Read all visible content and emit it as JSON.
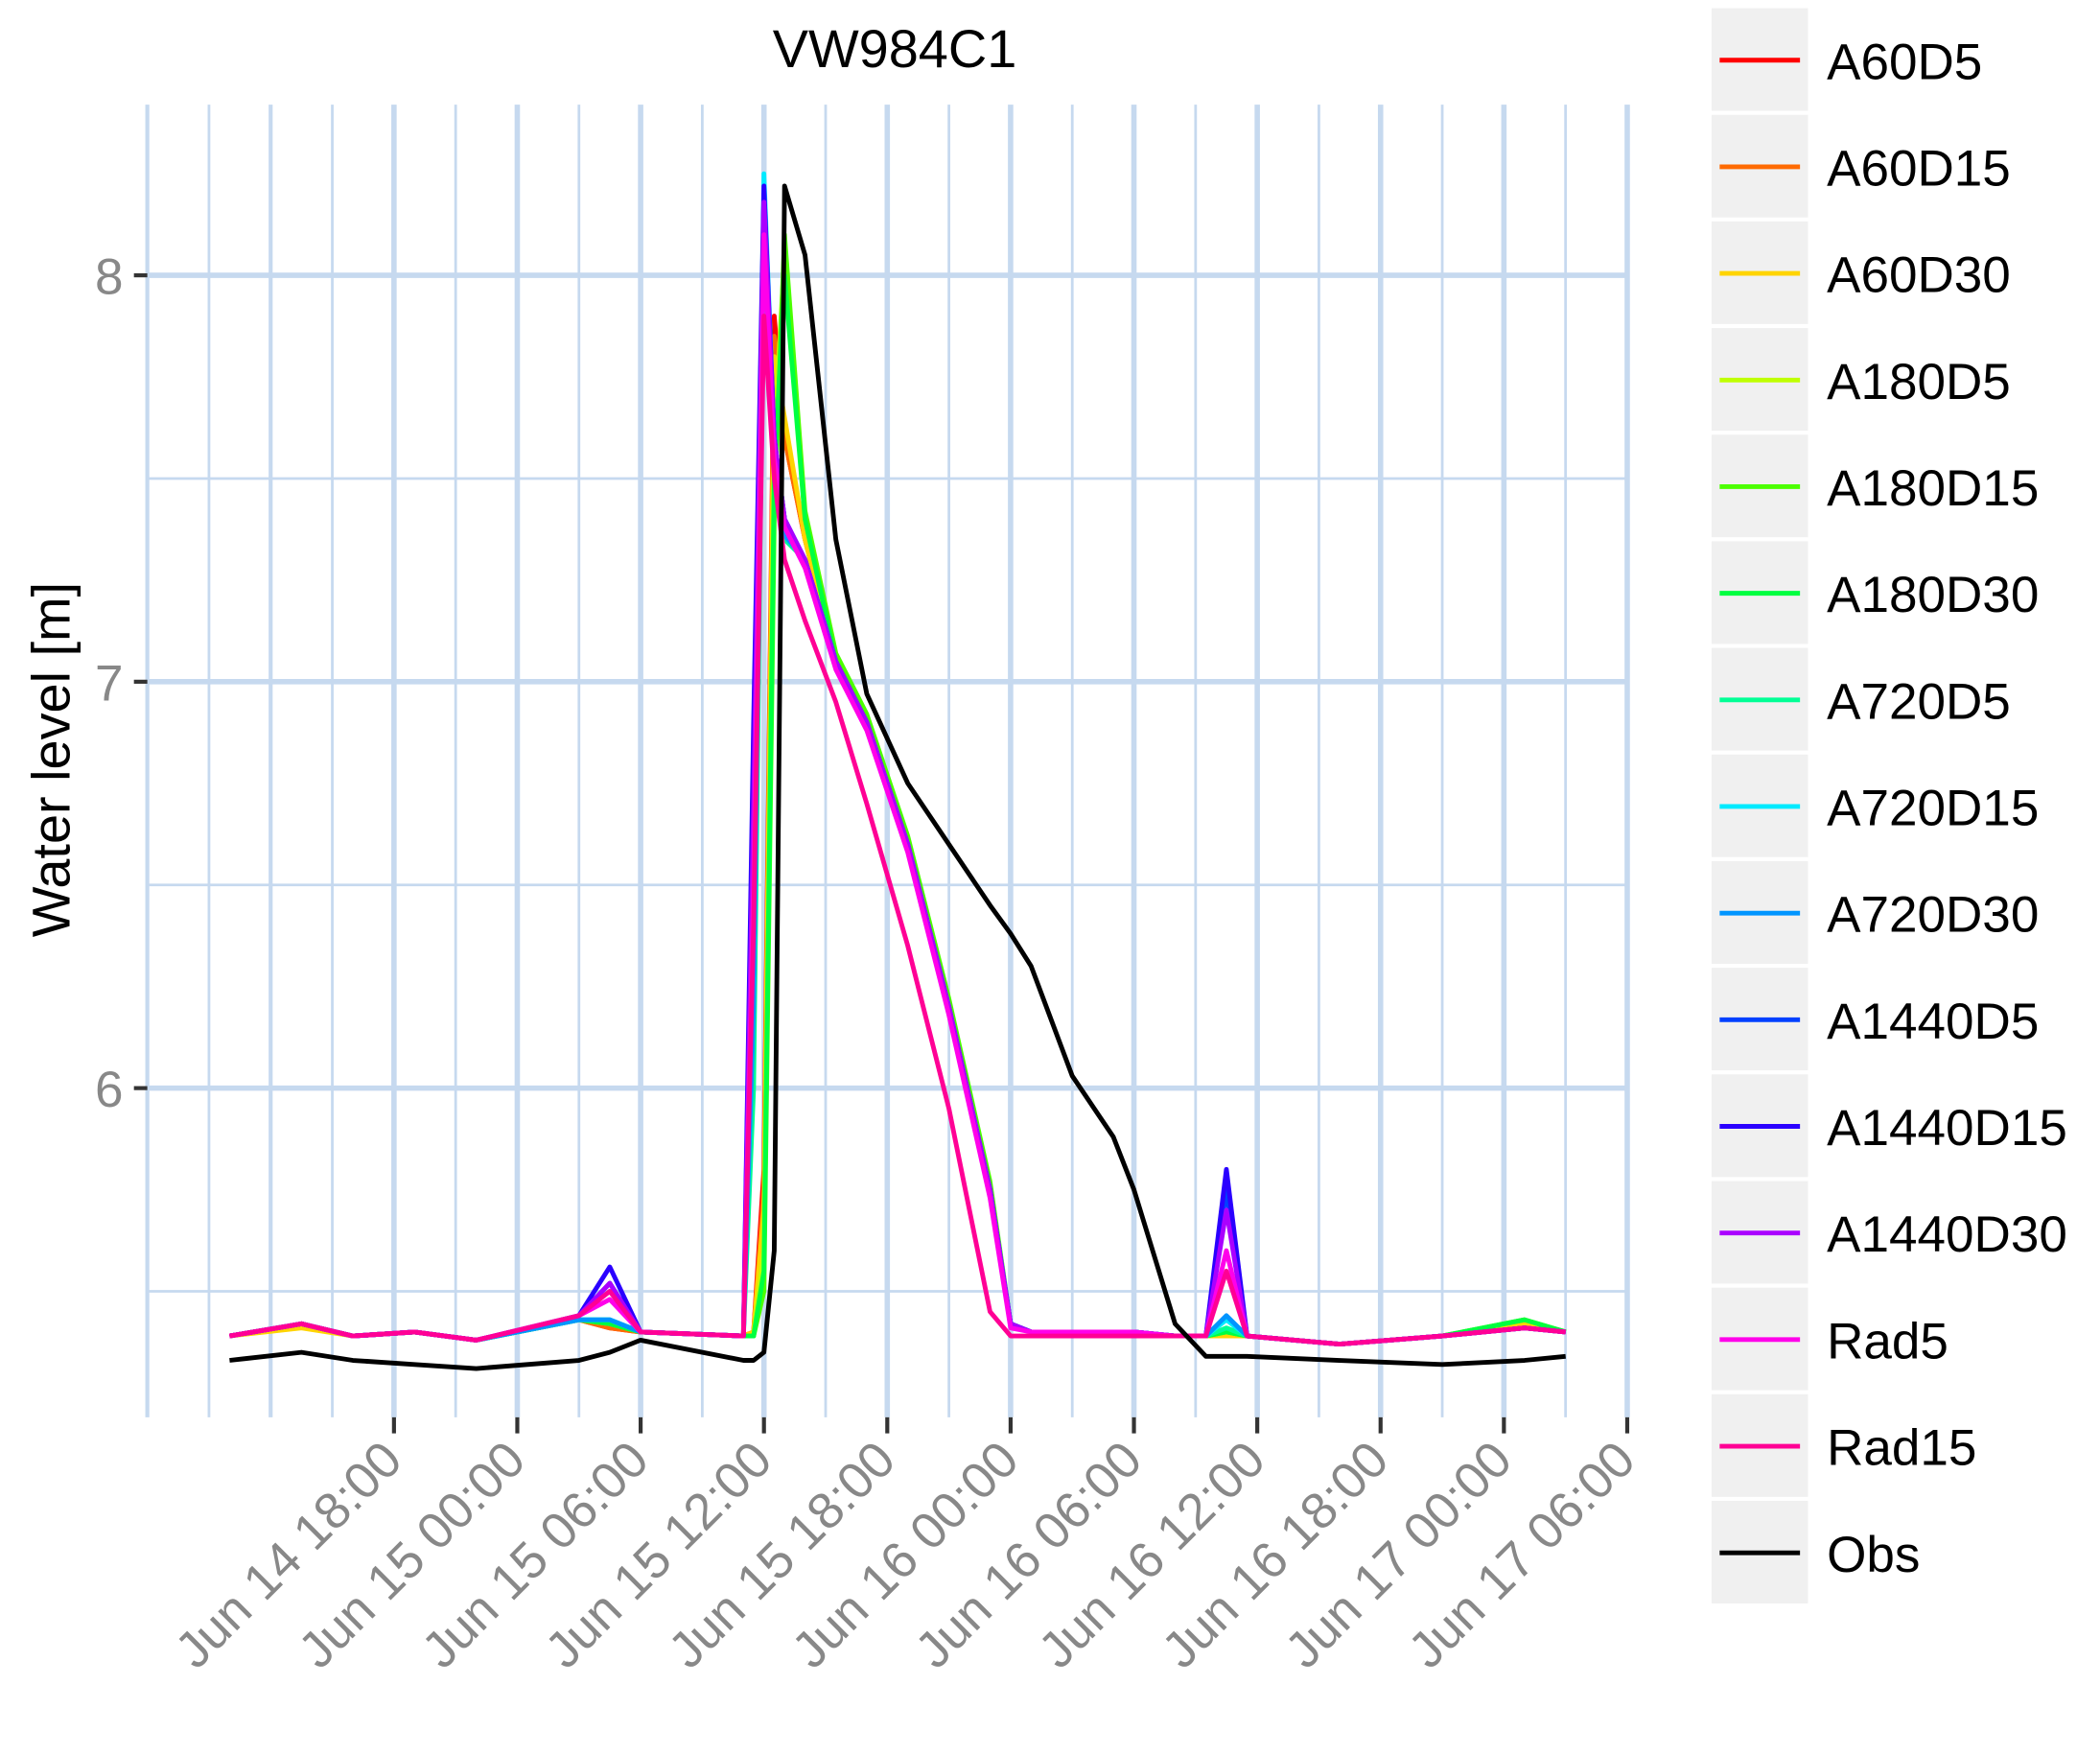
{
  "chart_data": {
    "type": "line",
    "title": "VW984C1",
    "y_label": "Water level [m]",
    "grid": true,
    "legend_position": "right",
    "x": [
      "Jun 14 10:00",
      "Jun 14 13:30",
      "Jun 14 16:00",
      "Jun 14 19:00",
      "Jun 14 22:00",
      "Jun 15 03:00",
      "Jun 15 04:30",
      "Jun 15 06:00",
      "Jun 15 11:00",
      "Jun 15 11:30",
      "Jun 15 12:00",
      "Jun 15 12:30",
      "Jun 15 13:00",
      "Jun 15 14:00",
      "Jun 15 15:30",
      "Jun 15 17:00",
      "Jun 15 19:00",
      "Jun 15 21:00",
      "Jun 15 23:00",
      "Jun 16 00:00",
      "Jun 16 01:00",
      "Jun 16 03:00",
      "Jun 16 05:00",
      "Jun 16 06:00",
      "Jun 16 08:00",
      "Jun 16 09:30",
      "Jun 16 10:30",
      "Jun 16 11:30",
      "Jun 16 16:00",
      "Jun 16 21:00",
      "Jun 17 01:00",
      "Jun 17 03:00"
    ],
    "xlim": [
      "Jun 14 06:00",
      "Jun 17 06:00"
    ],
    "xticks": [
      "Jun 14 18:00",
      "Jun 15 00:00",
      "Jun 15 06:00",
      "Jun 15 12:00",
      "Jun 15 18:00",
      "Jun 16 00:00",
      "Jun 16 06:00",
      "Jun 16 12:00",
      "Jun 16 18:00",
      "Jun 17 00:00",
      "Jun 17 06:00"
    ],
    "ylim": [
      5.19,
      8.42
    ],
    "yticks": [
      6,
      7,
      8
    ],
    "series": [
      {
        "name": "A60D5",
        "color": "#ff0000",
        "values": [
          5.39,
          5.42,
          5.39,
          5.4,
          5.38,
          5.43,
          5.41,
          5.4,
          5.39,
          5.4,
          5.8,
          7.9,
          7.6,
          7.35,
          7.05,
          6.9,
          6.6,
          6.2,
          5.75,
          5.42,
          5.4,
          5.4,
          5.4,
          5.4,
          5.39,
          5.39,
          5.39,
          5.39,
          5.37,
          5.39,
          5.42,
          5.4
        ]
      },
      {
        "name": "A60D15",
        "color": "#ff6a00",
        "values": [
          5.39,
          5.42,
          5.39,
          5.4,
          5.38,
          5.43,
          5.41,
          5.4,
          5.39,
          5.4,
          5.75,
          7.85,
          7.6,
          7.35,
          7.05,
          6.9,
          6.6,
          6.2,
          5.75,
          5.42,
          5.4,
          5.4,
          5.4,
          5.4,
          5.39,
          5.39,
          5.39,
          5.39,
          5.37,
          5.39,
          5.42,
          5.4
        ]
      },
      {
        "name": "A60D30",
        "color": "#ffd400",
        "values": [
          5.39,
          5.41,
          5.39,
          5.4,
          5.38,
          5.43,
          5.42,
          5.4,
          5.39,
          5.4,
          5.7,
          7.8,
          7.65,
          7.35,
          7.05,
          6.9,
          6.6,
          6.2,
          5.75,
          5.42,
          5.4,
          5.4,
          5.4,
          5.4,
          5.39,
          5.39,
          5.39,
          5.39,
          5.37,
          5.39,
          5.42,
          5.4
        ]
      },
      {
        "name": "A180D5",
        "color": "#bfff00",
        "values": [
          5.39,
          5.42,
          5.39,
          5.4,
          5.38,
          5.43,
          5.42,
          5.4,
          5.39,
          5.39,
          5.6,
          7.6,
          8.05,
          7.4,
          7.05,
          6.9,
          6.6,
          6.2,
          5.75,
          5.42,
          5.4,
          5.4,
          5.4,
          5.4,
          5.39,
          5.39,
          5.4,
          5.39,
          5.37,
          5.39,
          5.43,
          5.4
        ]
      },
      {
        "name": "A180D15",
        "color": "#4cff00",
        "values": [
          5.39,
          5.42,
          5.39,
          5.4,
          5.38,
          5.43,
          5.42,
          5.4,
          5.39,
          5.39,
          5.5,
          7.4,
          8.1,
          7.42,
          7.07,
          6.92,
          6.62,
          6.22,
          5.77,
          5.42,
          5.4,
          5.4,
          5.4,
          5.4,
          5.39,
          5.39,
          5.4,
          5.39,
          5.37,
          5.39,
          5.43,
          5.4
        ]
      },
      {
        "name": "A180D30",
        "color": "#00ff40",
        "values": [
          5.39,
          5.42,
          5.39,
          5.4,
          5.38,
          5.43,
          5.42,
          5.4,
          5.39,
          5.39,
          5.55,
          7.5,
          8.0,
          7.4,
          7.05,
          6.9,
          6.6,
          6.2,
          5.75,
          5.42,
          5.4,
          5.4,
          5.4,
          5.4,
          5.39,
          5.39,
          5.4,
          5.39,
          5.37,
          5.39,
          5.43,
          5.4
        ]
      },
      {
        "name": "A720D5",
        "color": "#00ff95",
        "values": [
          5.39,
          5.42,
          5.39,
          5.4,
          5.38,
          5.43,
          5.43,
          5.4,
          5.39,
          6.0,
          8.1,
          7.55,
          7.35,
          7.3,
          7.05,
          6.9,
          6.6,
          6.2,
          5.75,
          5.42,
          5.4,
          5.4,
          5.4,
          5.4,
          5.39,
          5.39,
          5.41,
          5.39,
          5.37,
          5.39,
          5.41,
          5.4
        ]
      },
      {
        "name": "A720D15",
        "color": "#00eaff",
        "values": [
          5.39,
          5.42,
          5.39,
          5.4,
          5.38,
          5.43,
          5.43,
          5.4,
          5.39,
          6.3,
          8.25,
          7.6,
          7.38,
          7.3,
          7.05,
          6.9,
          6.6,
          6.2,
          5.75,
          5.42,
          5.4,
          5.4,
          5.4,
          5.4,
          5.39,
          5.39,
          5.43,
          5.39,
          5.37,
          5.39,
          5.41,
          5.4
        ]
      },
      {
        "name": "A720D30",
        "color": "#0095ff",
        "values": [
          5.39,
          5.42,
          5.39,
          5.4,
          5.38,
          5.43,
          5.43,
          5.4,
          5.39,
          6.2,
          8.2,
          7.58,
          7.36,
          7.3,
          7.05,
          6.9,
          6.6,
          6.2,
          5.75,
          5.42,
          5.4,
          5.4,
          5.4,
          5.4,
          5.39,
          5.39,
          5.44,
          5.39,
          5.37,
          5.39,
          5.41,
          5.4
        ]
      },
      {
        "name": "A1440D5",
        "color": "#0040ff",
        "values": [
          5.39,
          5.42,
          5.39,
          5.4,
          5.38,
          5.44,
          5.52,
          5.4,
          5.39,
          6.8,
          8.2,
          7.6,
          7.4,
          7.3,
          7.05,
          6.9,
          6.6,
          6.2,
          5.75,
          5.42,
          5.4,
          5.4,
          5.4,
          5.4,
          5.39,
          5.39,
          5.75,
          5.39,
          5.37,
          5.39,
          5.41,
          5.4
        ]
      },
      {
        "name": "A1440D15",
        "color": "#2a00ff",
        "values": [
          5.39,
          5.42,
          5.39,
          5.4,
          5.38,
          5.44,
          5.56,
          5.4,
          5.39,
          6.9,
          8.22,
          7.6,
          7.4,
          7.3,
          7.05,
          6.9,
          6.6,
          6.2,
          5.75,
          5.42,
          5.4,
          5.4,
          5.4,
          5.4,
          5.39,
          5.39,
          5.8,
          5.39,
          5.37,
          5.39,
          5.41,
          5.4
        ]
      },
      {
        "name": "A1440D30",
        "color": "#aa00ff",
        "values": [
          5.39,
          5.42,
          5.39,
          5.4,
          5.38,
          5.44,
          5.52,
          5.4,
          5.39,
          6.7,
          8.18,
          7.6,
          7.4,
          7.3,
          7.05,
          6.9,
          6.6,
          6.2,
          5.75,
          5.42,
          5.4,
          5.4,
          5.4,
          5.4,
          5.39,
          5.39,
          5.7,
          5.39,
          5.37,
          5.39,
          5.41,
          5.4
        ]
      },
      {
        "name": "Rad5",
        "color": "#ff00ea",
        "values": [
          5.39,
          5.42,
          5.39,
          5.4,
          5.38,
          5.44,
          5.48,
          5.4,
          5.39,
          6.5,
          8.1,
          7.55,
          7.38,
          7.28,
          7.03,
          6.88,
          6.58,
          6.18,
          5.73,
          5.41,
          5.4,
          5.4,
          5.4,
          5.4,
          5.39,
          5.39,
          5.6,
          5.39,
          5.37,
          5.39,
          5.41,
          5.4
        ]
      },
      {
        "name": "Rad15",
        "color": "#ff0095",
        "values": [
          5.39,
          5.42,
          5.39,
          5.4,
          5.38,
          5.44,
          5.5,
          5.4,
          5.39,
          6.4,
          7.9,
          7.5,
          7.3,
          7.15,
          6.95,
          6.7,
          6.35,
          5.95,
          5.45,
          5.39,
          5.39,
          5.39,
          5.39,
          5.39,
          5.39,
          5.39,
          5.55,
          5.39,
          5.37,
          5.39,
          5.41,
          5.4
        ]
      },
      {
        "name": "Obs",
        "color": "#000000",
        "values": [
          5.33,
          5.35,
          5.33,
          5.32,
          5.31,
          5.33,
          5.35,
          5.38,
          5.33,
          5.33,
          5.35,
          5.6,
          8.22,
          8.05,
          7.35,
          6.97,
          6.75,
          6.6,
          6.45,
          6.38,
          6.3,
          6.03,
          5.88,
          5.75,
          5.42,
          5.34,
          5.34,
          5.34,
          5.33,
          5.32,
          5.33,
          5.34
        ]
      }
    ]
  }
}
